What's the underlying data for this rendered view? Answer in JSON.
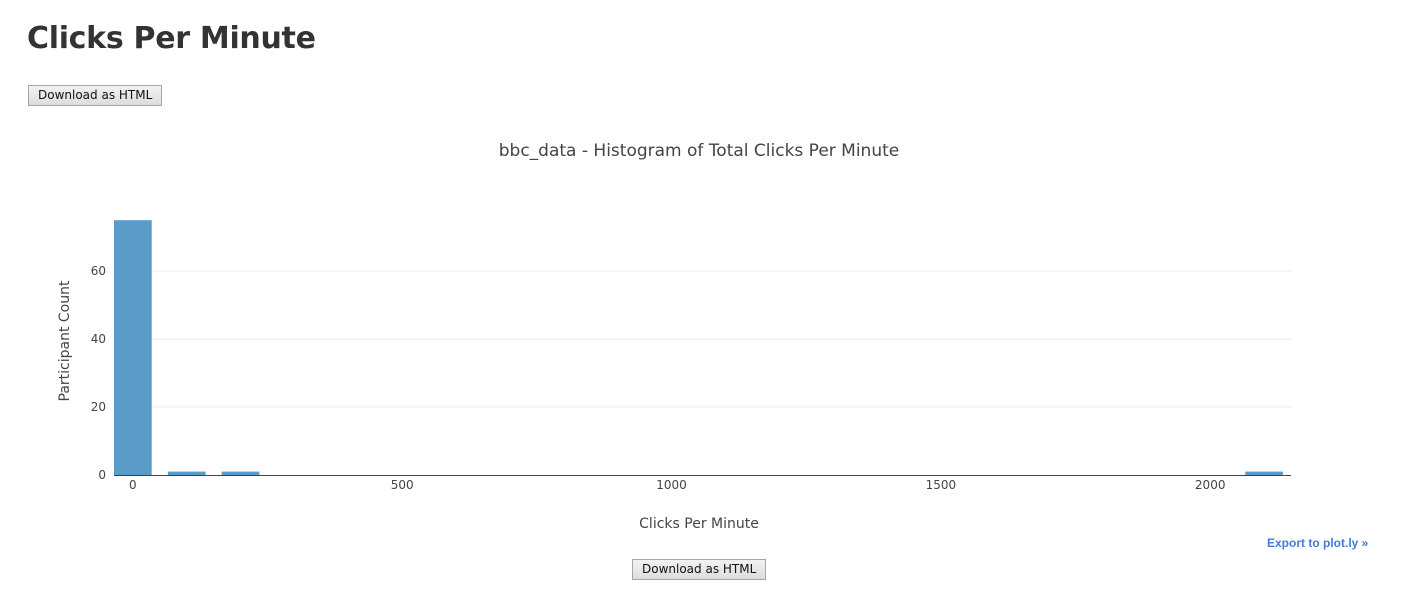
{
  "page": {
    "title": "Clicks Per Minute",
    "download_label": "Download as HTML",
    "export_label": "Export to plot.ly »"
  },
  "chart_data": {
    "type": "bar",
    "title": "bbc_data - Histogram of Total Clicks Per Minute",
    "xlabel": "Clicks Per Minute",
    "ylabel": "Participant Count",
    "xlim": [
      -35,
      2150
    ],
    "ylim": [
      0,
      78
    ],
    "x_ticks": [
      0,
      500,
      1000,
      1500,
      2000
    ],
    "y_ticks": [
      0,
      20,
      40,
      60
    ],
    "grid": true,
    "bar_color": "#5b9bc8",
    "bins": [
      {
        "start": -35,
        "end": 35,
        "count": 75
      },
      {
        "start": 65,
        "end": 135,
        "count": 1
      },
      {
        "start": 165,
        "end": 235,
        "count": 1
      },
      {
        "start": 2065,
        "end": 2135,
        "count": 1
      }
    ]
  }
}
